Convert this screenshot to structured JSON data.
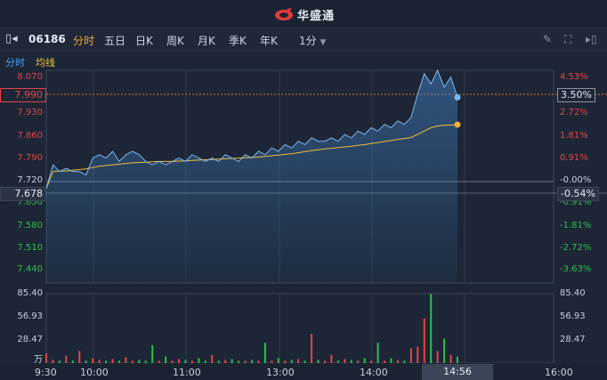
{
  "brand": {
    "name": "华盛通",
    "logo_icon": "huasheng-logo-icon"
  },
  "toolbar": {
    "code": "06186",
    "tabs": [
      "分时",
      "五日",
      "日K",
      "周K",
      "月K",
      "季K",
      "年K"
    ],
    "active_tab": "分时",
    "period": "1分"
  },
  "subtabs": {
    "timeshare": "分时",
    "avg_line": "均线"
  },
  "price_axis": {
    "left": [
      "8.070",
      "7.990",
      "7.930",
      "7.860",
      "7.790",
      "7.720",
      "7.650",
      "7.580",
      "7.510",
      "7.440"
    ],
    "right": [
      "4.53%",
      "3.50%",
      "2.72%",
      "1.81%",
      "0.91%",
      "-0.00%",
      "-0.91%",
      "-1.81%",
      "-2.72%",
      "-3.63%"
    ]
  },
  "current_price": {
    "price": "7.990",
    "pct": "3.50%"
  },
  "cursor_price": {
    "price": "7.678",
    "pct": "-0.54%"
  },
  "volume_axis": {
    "left": [
      "85.40",
      "56.93",
      "28.47",
      "万"
    ],
    "right": [
      "85.40",
      "56.93",
      "28.47"
    ]
  },
  "time_axis": [
    "9:30",
    "10:00",
    "11:00",
    "13:00",
    "14:00",
    "16:00"
  ],
  "current_time": "14:56",
  "colors": {
    "up": "#e64545",
    "down": "#2fbf4a",
    "price_line": "#7eb8f0",
    "avg_line": "#f0c040",
    "accent": "#f0a63a"
  },
  "chart_data": {
    "type": "line",
    "series": [
      {
        "values": [
          7.72,
          7.79,
          7.77,
          7.78,
          7.77,
          7.77,
          7.76,
          7.81,
          7.82,
          7.81,
          7.83,
          7.8,
          7.82,
          7.83,
          7.82,
          7.8,
          7.79,
          7.8,
          7.79,
          7.8,
          7.81,
          7.8,
          7.82,
          7.81,
          7.8,
          7.81,
          7.8,
          7.82,
          7.81,
          7.8,
          7.82,
          7.81,
          7.83,
          7.82,
          7.84,
          7.83,
          7.85,
          7.84,
          7.86,
          7.85,
          7.87,
          7.86,
          7.86,
          7.87,
          7.86,
          7.88,
          7.87,
          7.89,
          7.88,
          7.9,
          7.89,
          7.91,
          7.9,
          7.92,
          7.91,
          7.93,
          8.0,
          8.06,
          8.03,
          8.07,
          8.02,
          8.05,
          7.99
        ]
      },
      {
        "values": [
          7.72,
          7.77,
          7.772,
          7.772,
          7.774,
          7.776,
          7.778,
          7.782,
          7.786,
          7.788,
          7.79,
          7.792,
          7.794,
          7.796,
          7.797,
          7.798,
          7.799,
          7.8,
          7.8,
          7.8,
          7.801,
          7.802,
          7.803,
          7.804,
          7.805,
          7.806,
          7.807,
          7.808,
          7.809,
          7.81,
          7.811,
          7.812,
          7.813,
          7.815,
          7.817,
          7.819,
          7.821,
          7.823,
          7.826,
          7.829,
          7.832,
          7.835,
          7.837,
          7.839,
          7.841,
          7.843,
          7.845,
          7.848,
          7.85,
          7.853,
          7.856,
          7.859,
          7.862,
          7.865,
          7.868,
          7.871,
          7.88,
          7.89,
          7.9,
          7.905,
          7.907,
          7.908,
          7.909
        ]
      }
    ],
    "ylim": [
      7.44,
      8.07
    ],
    "volume": [
      12,
      4,
      3,
      9,
      3,
      15,
      3,
      6,
      4,
      3,
      5,
      3,
      7,
      3,
      4,
      3,
      22,
      3,
      8,
      3,
      5,
      4,
      3,
      6,
      3,
      10,
      3,
      4,
      5,
      3,
      3,
      4,
      3,
      25,
      3,
      6,
      3,
      4,
      5,
      3,
      36,
      4,
      3,
      10,
      3,
      5,
      4,
      3,
      6,
      3,
      25,
      3,
      6,
      4,
      3,
      18,
      20,
      55,
      85,
      15,
      30,
      10,
      8
    ],
    "volume_ylim": [
      0,
      85.4
    ]
  }
}
